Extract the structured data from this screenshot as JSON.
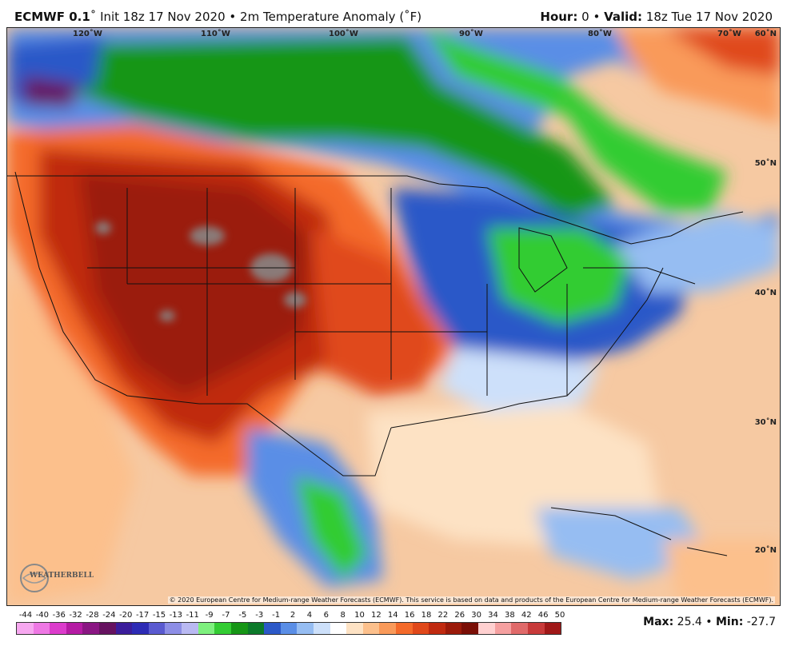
{
  "header": {
    "model": "ECMWF 0.1",
    "degree_symbol": "˚",
    "init": "Init 18z 17 Nov 2020",
    "separator": "•",
    "field": "2m Temperature Anomaly (˚F)",
    "hour_label": "Hour:",
    "hour_value": "0",
    "valid_label": "Valid:",
    "valid_value": "18z Tue 17 Nov 2020"
  },
  "map": {
    "lon_labels": [
      "120˚W",
      "110˚W",
      "100˚W",
      "90˚W",
      "80˚W",
      "70˚W"
    ],
    "lat_labels": [
      "60˚N",
      "50˚N",
      "40˚N",
      "30˚N",
      "20˚N"
    ],
    "credit": "© 2020 European Centre for Medium-range Weather Forecasts (ECMWF). This service is based on data and products of the European Centre for Medium-range Weather Forecasts (ECMWF).",
    "logo_text": "WEATHERBELL",
    "logo_icon": "weatherbell-globe-icon"
  },
  "legend": {
    "ticks": [
      "-44",
      "-40",
      "-36",
      "-32",
      "-28",
      "-24",
      "-20",
      "-17",
      "-15",
      "-13",
      "-11",
      "-9",
      "-7",
      "-5",
      "-3",
      "-1",
      "2",
      "4",
      "6",
      "8",
      "10",
      "12",
      "14",
      "16",
      "18",
      "22",
      "26",
      "30",
      "34",
      "38",
      "42",
      "46",
      "50"
    ],
    "colors": [
      "#f7a8f0",
      "#ee78e4",
      "#dc3ccc",
      "#b51ba4",
      "#8a1683",
      "#661260",
      "#3b1d9b",
      "#2d2bb5",
      "#5a5ad0",
      "#8d8ee6",
      "#b9b9f2",
      "#7ef07e",
      "#33cc33",
      "#169616",
      "#0c7a2a",
      "#2c59c8",
      "#5a8ee6",
      "#96bdf2",
      "#cde0fa",
      "#ffffff",
      "#fde2c4",
      "#fcc08c",
      "#f99a5a",
      "#f46a2a",
      "#e0481a",
      "#c02a10",
      "#9b1a0a",
      "#7a0e06",
      "#ffd0d0",
      "#f5a0a0",
      "#e06a6a",
      "#c83a3a",
      "#a01818"
    ]
  },
  "stats": {
    "max_label": "Max",
    "max_value": "25.4",
    "min_label": "Min",
    "min_value": "-27.7",
    "separator": "•"
  }
}
